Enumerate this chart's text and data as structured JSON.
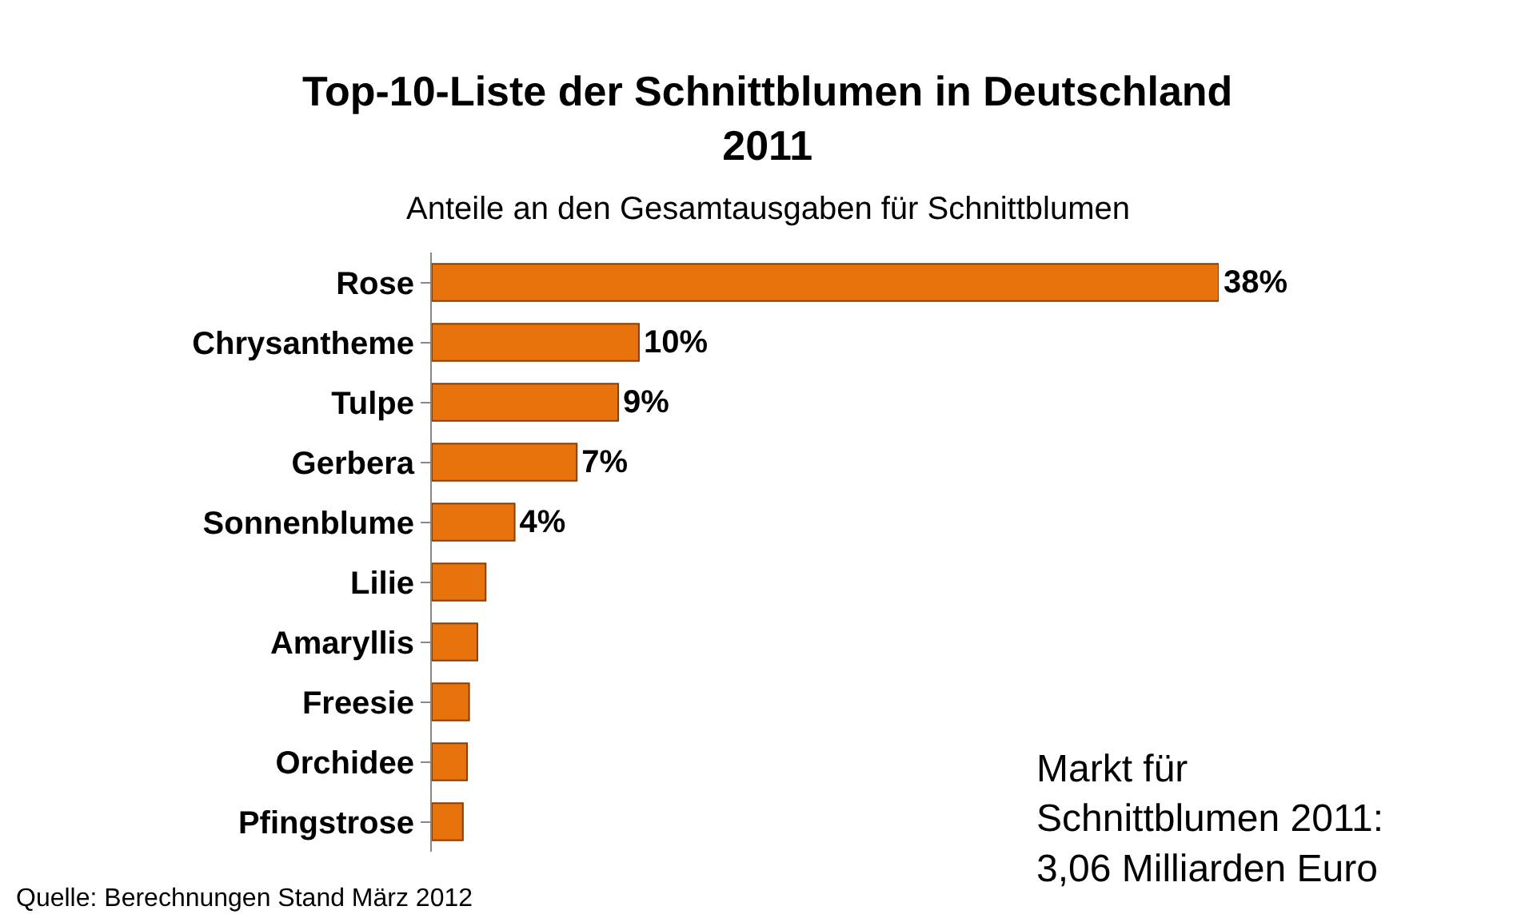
{
  "chart_data": {
    "type": "bar",
    "orientation": "horizontal",
    "title": "Top-10-Liste der Schnittblumen in Deutschland\n2011",
    "subtitle": "Anteile an den Gesamtausgaben für Schnittblumen",
    "categories": [
      "Rose",
      "Chrysantheme",
      "Tulpe",
      "Gerbera",
      "Sonnenblume",
      "Lilie",
      "Amaryllis",
      "Freesie",
      "Orchidee",
      "Pfingstrose"
    ],
    "values": [
      38,
      10,
      9,
      7,
      4,
      2.6,
      2.2,
      1.8,
      1.7,
      1.5
    ],
    "value_labels": [
      "38%",
      "10%",
      "9%",
      "7%",
      "4%",
      null,
      null,
      null,
      null,
      null
    ],
    "color": "#e8720c",
    "legend": false,
    "annotations": [
      "Quelle: Berechnungen Stand März 2012",
      "Markt für\nSchnittblumen 2011:\n3,06 Milliarden Euro"
    ]
  }
}
